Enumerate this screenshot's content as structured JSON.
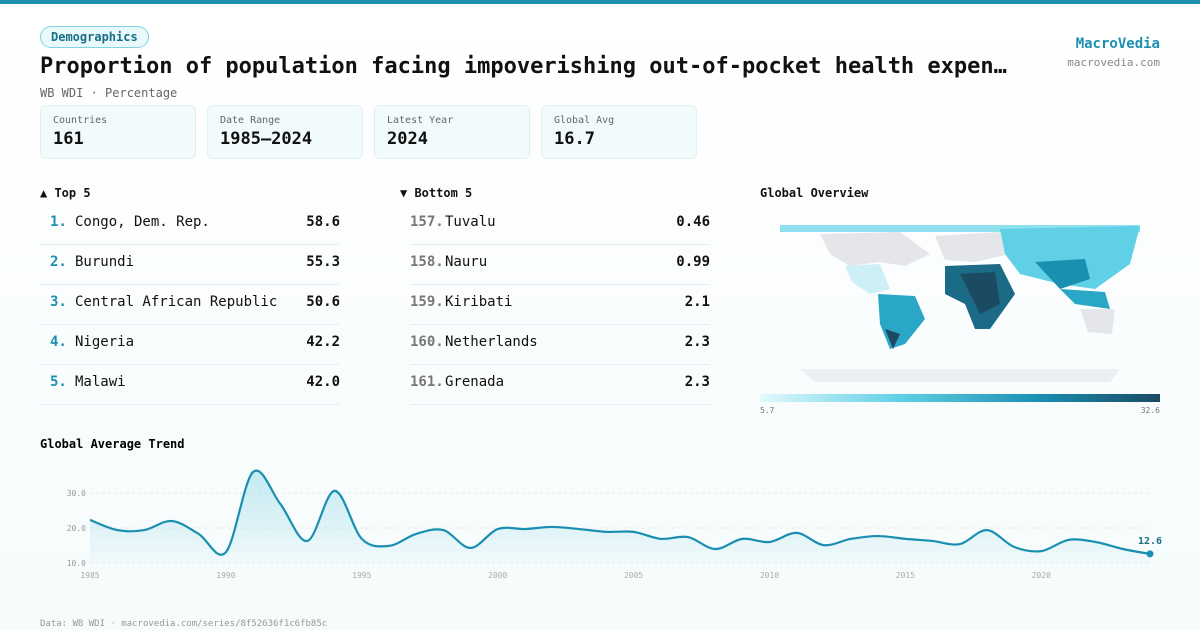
{
  "header": {
    "tag": "Demographics",
    "title": "Proportion of population facing impoverishing out-of-pocket health expen…",
    "subtitle": "WB WDI · Percentage",
    "brand": "MacroVedia",
    "site": "macrovedia.com"
  },
  "stats": [
    {
      "label": "Countries",
      "value": "161"
    },
    {
      "label": "Date Range",
      "value": "1985–2024"
    },
    {
      "label": "Latest Year",
      "value": "2024"
    },
    {
      "label": "Global Avg",
      "value": "16.7"
    }
  ],
  "top": {
    "heading": "▲ Top 5",
    "rows": [
      [
        "1.",
        "Congo, Dem. Rep.",
        "58.6"
      ],
      [
        "2.",
        "Burundi",
        "55.3"
      ],
      [
        "3.",
        "Central African Republic",
        "50.6"
      ],
      [
        "4.",
        "Nigeria",
        "42.2"
      ],
      [
        "5.",
        "Malawi",
        "42.0"
      ]
    ]
  },
  "bottom": {
    "heading": "▼ Bottom 5",
    "rows": [
      [
        "157.",
        "Tuvalu",
        "0.46"
      ],
      [
        "158.",
        "Nauru",
        "0.99"
      ],
      [
        "159.",
        "Kiribati",
        "2.1"
      ],
      [
        "160.",
        "Netherlands",
        "2.3"
      ],
      [
        "161.",
        "Grenada",
        "2.3"
      ]
    ]
  },
  "map": {
    "heading": "Global Overview",
    "scale_min": "5.7",
    "scale_max": "32.6"
  },
  "chart_data": {
    "type": "line",
    "title": "Global Average Trend",
    "color": "#1a8fb0",
    "x": [
      1985,
      1986,
      1987,
      1988,
      1989,
      1990,
      1991,
      1992,
      1993,
      1994,
      1995,
      1996,
      1997,
      1998,
      1999,
      2000,
      2001,
      2002,
      2003,
      2004,
      2005,
      2006,
      2007,
      2008,
      2009,
      2010,
      2011,
      2012,
      2013,
      2014,
      2015,
      2016,
      2017,
      2018,
      2019,
      2020,
      2021,
      2022,
      2023,
      2024
    ],
    "values": [
      22.3,
      19.4,
      19.4,
      22.0,
      18.3,
      13.1,
      36.0,
      26.9,
      16.3,
      30.6,
      16.9,
      14.9,
      18.3,
      19.4,
      14.3,
      19.7,
      19.7,
      20.3,
      19.7,
      18.9,
      18.9,
      16.9,
      17.4,
      14.0,
      16.9,
      16.0,
      18.6,
      15.1,
      16.9,
      17.7,
      16.9,
      16.3,
      15.4,
      19.4,
      14.6,
      13.4,
      16.6,
      16.0,
      14.0,
      12.6
    ],
    "xlim": [
      1985,
      2024
    ],
    "xticks": [
      1985,
      1990,
      1995,
      2000,
      2005,
      2010,
      2015,
      2020
    ],
    "ylim": [
      10,
      37
    ],
    "yticks": [
      {
        "value": 10,
        "label": "10.0"
      },
      {
        "value": 20,
        "label": "20.0"
      },
      {
        "value": 30,
        "label": "30.0"
      }
    ],
    "grid": true
  },
  "footer": "Data: WB WDI · macrovedia.com/series/8f52636f1c6fb85c"
}
